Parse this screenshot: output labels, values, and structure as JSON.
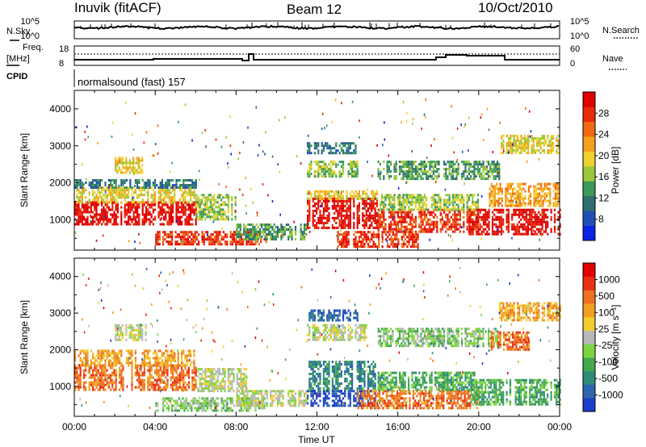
{
  "header": {
    "station": "Inuvik (fitACF)",
    "beam": "Beam 12",
    "date": "10/Oct/2010"
  },
  "strip_nsky": {
    "left_label": "N.Sky",
    "right_label": "N.Search",
    "left_ticks": [
      "10^5",
      "10^0"
    ],
    "right_ticks": [
      "10^5",
      "10^0"
    ]
  },
  "strip_freq": {
    "left_label_line1": "Freq.",
    "left_label_line2": "[MHz]",
    "right_label": "Nave",
    "left_ticks": [
      "18",
      "8"
    ],
    "right_ticks": [
      "60",
      "0"
    ]
  },
  "cpid": {
    "label": "CPID",
    "value": "normalsound (fast) 157"
  },
  "chart_data": [
    {
      "type": "heatmap",
      "name": "power",
      "ylabel": "Slant Range [km]",
      "xlabel": "Time UT",
      "x_ticks": [
        "00:00",
        "04:00",
        "08:00",
        "12:00",
        "16:00",
        "20:00",
        "00:00"
      ],
      "xlim": [
        0,
        24
      ],
      "ylim": [
        180,
        4500
      ],
      "y_ticks": [
        1000,
        2000,
        3000,
        4000
      ],
      "colorbar": {
        "label": "Power [dB]",
        "ticks": [
          "8",
          "12",
          "16",
          "20",
          "24",
          "28"
        ],
        "colors": [
          "#0a22e6",
          "#1f4fb5",
          "#2e6e6e",
          "#3b9a58",
          "#9bc83a",
          "#f0d030",
          "#f4a21c",
          "#ef6a10",
          "#e82a0a",
          "#e00000"
        ]
      },
      "bands": [
        {
          "t0": 0.0,
          "t1": 6.0,
          "r0": 900,
          "r1": 1500,
          "level": 9
        },
        {
          "t0": 0.0,
          "t1": 6.0,
          "r0": 1500,
          "r1": 1900,
          "level": 5
        },
        {
          "t0": 0.0,
          "t1": 6.0,
          "r0": 1900,
          "r1": 2100,
          "level": 2
        },
        {
          "t0": 4.0,
          "t1": 9.5,
          "r0": 350,
          "r1": 700,
          "level": 8
        },
        {
          "t0": 6.0,
          "t1": 8.0,
          "r0": 1000,
          "r1": 1700,
          "level": 4
        },
        {
          "t0": 8.0,
          "t1": 11.5,
          "r0": 500,
          "r1": 900,
          "level": 3
        },
        {
          "t0": 11.5,
          "t1": 15.0,
          "r0": 800,
          "r1": 1600,
          "level": 9
        },
        {
          "t0": 11.5,
          "t1": 15.0,
          "r0": 1600,
          "r1": 1800,
          "level": 5
        },
        {
          "t0": 11.5,
          "t1": 14.0,
          "r0": 2200,
          "r1": 2600,
          "level": 4
        },
        {
          "t0": 11.5,
          "t1": 14.0,
          "r0": 2800,
          "r1": 3100,
          "level": 2
        },
        {
          "t0": 13.0,
          "t1": 17.0,
          "r0": 300,
          "r1": 700,
          "level": 8
        },
        {
          "t0": 15.0,
          "t1": 20.0,
          "r0": 700,
          "r1": 1300,
          "level": 8
        },
        {
          "t0": 15.0,
          "t1": 20.0,
          "r0": 1300,
          "r1": 1700,
          "level": 4
        },
        {
          "t0": 15.0,
          "t1": 21.0,
          "r0": 2100,
          "r1": 2600,
          "level": 3
        },
        {
          "t0": 19.5,
          "t1": 24.0,
          "r0": 600,
          "r1": 1300,
          "level": 9
        },
        {
          "t0": 20.5,
          "t1": 24.0,
          "r0": 1400,
          "r1": 2000,
          "level": 6
        },
        {
          "t0": 21.0,
          "t1": 24.0,
          "r0": 2800,
          "r1": 3300,
          "level": 5
        },
        {
          "t0": 2.0,
          "t1": 3.5,
          "r0": 2300,
          "r1": 2700,
          "level": 5
        }
      ]
    },
    {
      "type": "heatmap",
      "name": "velocity",
      "ylabel": "Slant Range [km]",
      "xlabel": "Time UT",
      "x_ticks": [
        "00:00",
        "04:00",
        "08:00",
        "12:00",
        "16:00",
        "20:00",
        "00:00"
      ],
      "xlim": [
        0,
        24
      ],
      "ylim": [
        180,
        4500
      ],
      "y_ticks": [
        1000,
        2000,
        3000,
        4000
      ],
      "colorbar": {
        "label": "Velocity [m s⁻¹]",
        "ticks": [
          "1000",
          "500",
          "100",
          "25",
          "-25",
          "-100",
          "-500",
          "-1000"
        ],
        "colors": [
          "#1a3ec8",
          "#2f64b0",
          "#2f8a78",
          "#44a84e",
          "#7ed440",
          "#b8b8b8",
          "#f2cc30",
          "#f0a020",
          "#ee7020",
          "#e83010",
          "#e00000"
        ]
      },
      "bands": [
        {
          "t0": 0.0,
          "t1": 6.0,
          "r0": 900,
          "r1": 1600,
          "level": 8
        },
        {
          "t0": 0.0,
          "t1": 6.0,
          "r0": 1600,
          "r1": 2000,
          "level": 7
        },
        {
          "t0": 4.0,
          "t1": 9.5,
          "r0": 350,
          "r1": 700,
          "level": 4
        },
        {
          "t0": 6.0,
          "t1": 8.5,
          "r0": 900,
          "r1": 1500,
          "level": 5
        },
        {
          "t0": 8.0,
          "t1": 11.5,
          "r0": 500,
          "r1": 900,
          "level": 5
        },
        {
          "t0": 11.5,
          "t1": 15.0,
          "r0": 900,
          "r1": 1700,
          "level": 2
        },
        {
          "t0": 11.5,
          "t1": 15.0,
          "r0": 500,
          "r1": 900,
          "level": 0
        },
        {
          "t0": 11.5,
          "t1": 14.5,
          "r0": 2300,
          "r1": 2700,
          "level": 5
        },
        {
          "t0": 11.5,
          "t1": 14.0,
          "r0": 2800,
          "r1": 3100,
          "level": 1
        },
        {
          "t0": 14.0,
          "t1": 20.0,
          "r0": 400,
          "r1": 900,
          "level": 8
        },
        {
          "t0": 15.0,
          "t1": 20.0,
          "r0": 900,
          "r1": 1400,
          "level": 3
        },
        {
          "t0": 15.0,
          "t1": 21.0,
          "r0": 2100,
          "r1": 2600,
          "level": 4
        },
        {
          "t0": 19.5,
          "t1": 24.0,
          "r0": 500,
          "r1": 1200,
          "level": 3
        },
        {
          "t0": 20.5,
          "t1": 22.5,
          "r0": 2000,
          "r1": 2500,
          "level": 8
        },
        {
          "t0": 21.0,
          "t1": 24.0,
          "r0": 2800,
          "r1": 3300,
          "level": 7
        },
        {
          "t0": 2.0,
          "t1": 3.5,
          "r0": 2300,
          "r1": 2700,
          "level": 5
        }
      ]
    }
  ]
}
